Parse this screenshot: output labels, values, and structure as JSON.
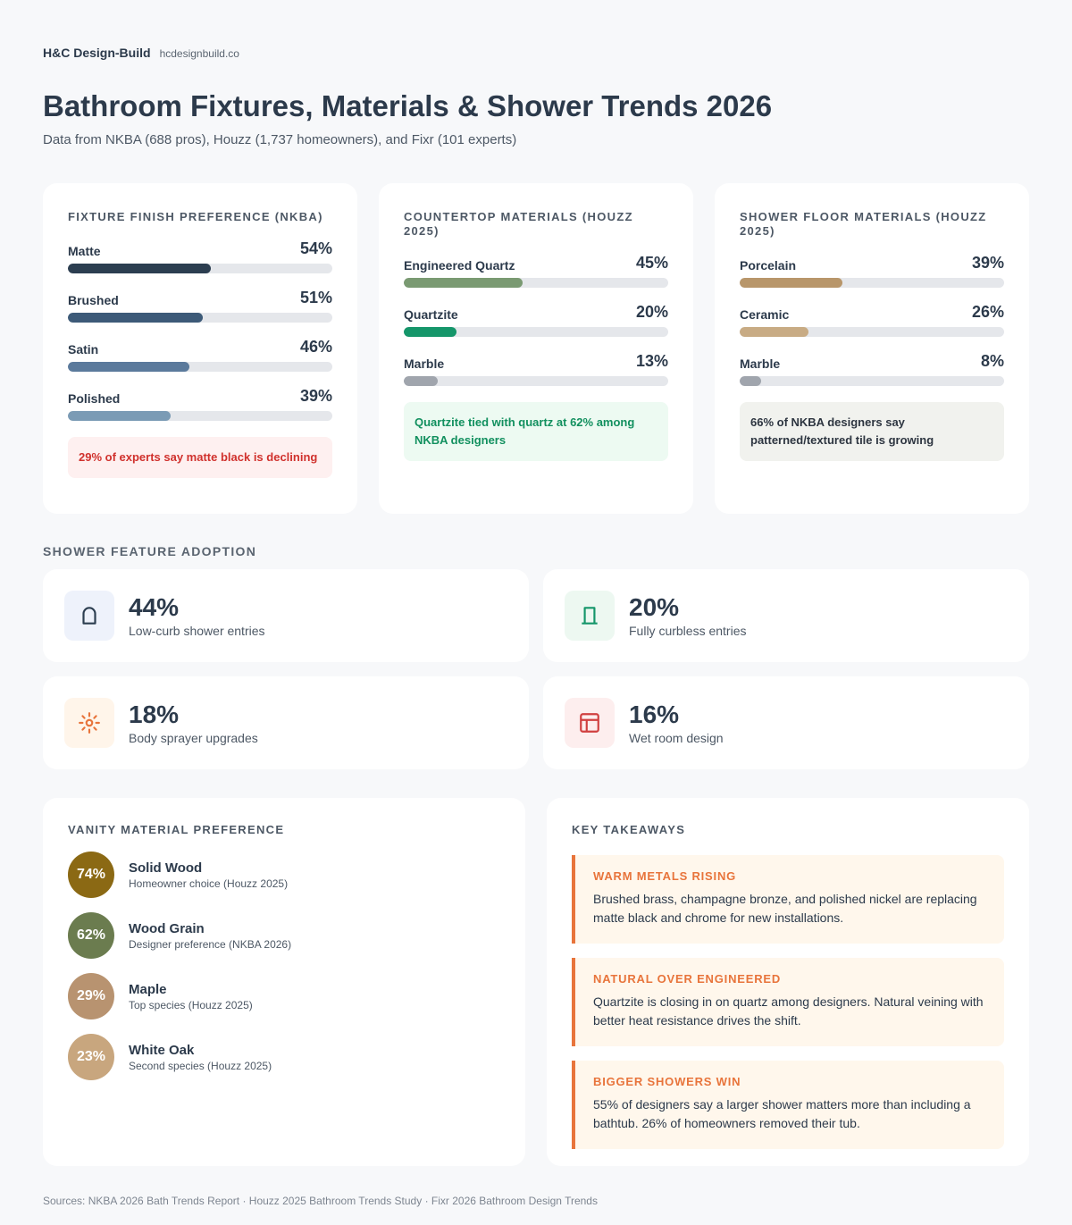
{
  "header": {
    "brand": "H&C Design-Build",
    "site": "hcdesignbuild.co",
    "title": "Bathroom Fixtures, Materials & Shower Trends 2026",
    "subtitle": "Data from NKBA (688 pros), Houzz (1,737 homeowners), and Fixr (101 experts)"
  },
  "bar_cards": [
    {
      "title": "FIXTURE FINISH PREFERENCE (NKBA)",
      "xlim": [
        0,
        100
      ],
      "items": [
        {
          "label": "Matte",
          "value": 54,
          "value_label": "54%",
          "color": "#2c3e50"
        },
        {
          "label": "Brushed",
          "value": 51,
          "value_label": "51%",
          "color": "#3d5a78"
        },
        {
          "label": "Satin",
          "value": 46,
          "value_label": "46%",
          "color": "#5b7a9c"
        },
        {
          "label": "Polished",
          "value": 39,
          "value_label": "39%",
          "color": "#7b9bb5"
        }
      ],
      "note": "29% of experts say matte black is declining",
      "note_color": "#d0312d",
      "note_bg": "#fef0f0"
    },
    {
      "title": "COUNTERTOP MATERIALS (HOUZZ 2025)",
      "xlim": [
        0,
        100
      ],
      "items": [
        {
          "label": "Engineered Quartz",
          "value": 45,
          "value_label": "45%",
          "color": "#7a9a72"
        },
        {
          "label": "Quartzite",
          "value": 20,
          "value_label": "20%",
          "color": "#15966a"
        },
        {
          "label": "Marble",
          "value": 13,
          "value_label": "13%",
          "color": "#a0a5ad"
        }
      ],
      "note": "Quartzite tied with quartz at 62% among NKBA designers",
      "note_color": "#12905f",
      "note_bg": "#edfaf2"
    },
    {
      "title": "SHOWER FLOOR MATERIALS (HOUZZ 2025)",
      "xlim": [
        0,
        100
      ],
      "items": [
        {
          "label": "Porcelain",
          "value": 39,
          "value_label": "39%",
          "color": "#b8966a"
        },
        {
          "label": "Ceramic",
          "value": 26,
          "value_label": "26%",
          "color": "#c8ab84"
        },
        {
          "label": "Marble",
          "value": 8,
          "value_label": "8%",
          "color": "#a0a5ad"
        }
      ],
      "note": "66% of NKBA designers say patterned/textured tile is growing",
      "note_color": "#2d3540",
      "note_bg": "#f1f2ee"
    }
  ],
  "features": {
    "title": "SHOWER FEATURE ADOPTION",
    "items": [
      {
        "value": "44%",
        "label": "Low-curb shower entries",
        "color": "#2c3e50",
        "bg": "#eef2fb"
      },
      {
        "value": "20%",
        "label": "Fully curbless entries",
        "color": "#15966a",
        "bg": "#edf8f1"
      },
      {
        "value": "18%",
        "label": "Body sprayer upgrades",
        "color": "#e8743b",
        "bg": "#fff5ea"
      },
      {
        "value": "16%",
        "label": "Wet room design",
        "color": "#d04040",
        "bg": "#fdeeee"
      }
    ]
  },
  "vanity": {
    "title": "VANITY MATERIAL PREFERENCE",
    "items": [
      {
        "value": "74%",
        "name": "Solid Wood",
        "sub": "Homeowner choice (Houzz 2025)",
        "color": "#8b6914"
      },
      {
        "value": "62%",
        "name": "Wood Grain",
        "sub": "Designer preference (NKBA 2026)",
        "color": "#6b7c4f"
      },
      {
        "value": "29%",
        "name": "Maple",
        "sub": "Top species (Houzz 2025)",
        "color": "#b89370"
      },
      {
        "value": "23%",
        "name": "White Oak",
        "sub": "Second species (Houzz 2025)",
        "color": "#c8a67e"
      }
    ]
  },
  "takeaways": {
    "title": "KEY TAKEAWAYS",
    "items": [
      {
        "heading": "WARM METALS RISING",
        "body": "Brushed brass, champagne bronze, and polished nickel are replacing matte black and chrome for new installations."
      },
      {
        "heading": "NATURAL OVER ENGINEERED",
        "body": "Quartzite is closing in on quartz among designers. Natural veining with better heat resistance drives the shift."
      },
      {
        "heading": "BIGGER SHOWERS WIN",
        "body": "55% of designers say a larger shower matters more than including a bathtub. 26% of homeowners removed their tub."
      }
    ]
  },
  "footer": "Sources: NKBA 2026 Bath Trends Report · Houzz 2025 Bathroom Trends Study · Fixr 2026 Bathroom Design Trends"
}
